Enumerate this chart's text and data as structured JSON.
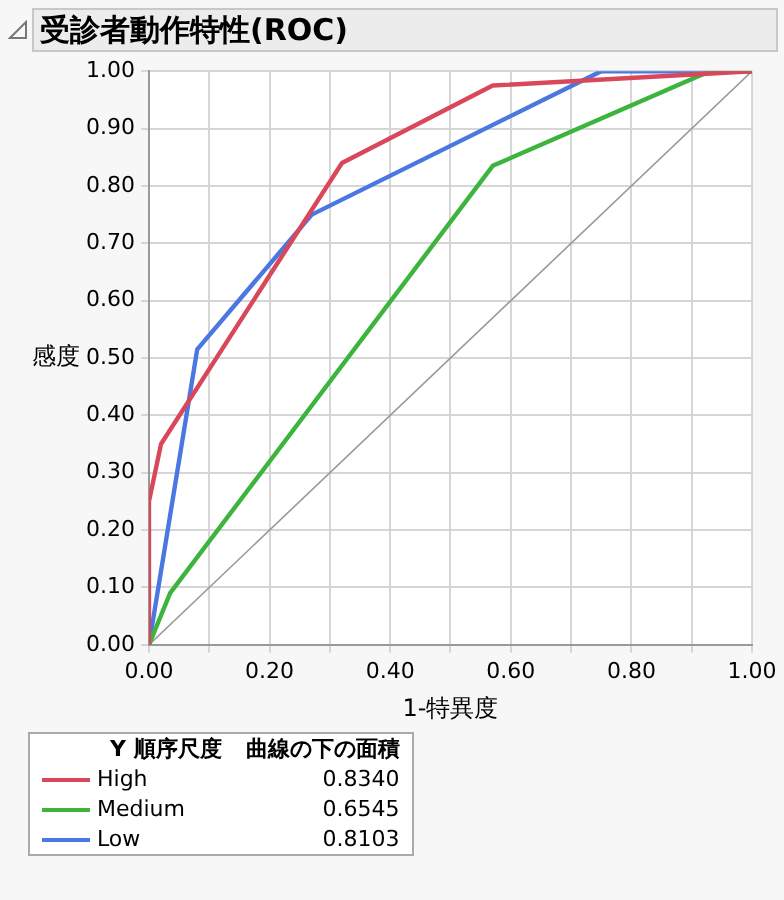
{
  "chart_data": {
    "type": "line",
    "title": "受診者動作特性(ROC)",
    "xlabel": "1-特異度",
    "ylabel": "感度",
    "legend": "bottom",
    "legend_title": "Y 順序尺度",
    "annotations": [
      "曲線の下の面積",
      "0.8340",
      "0.6545",
      "0.8103"
    ],
    "xlim": [
      0,
      1
    ],
    "ylim": [
      0,
      1
    ],
    "xticks": [
      {
        "value": 0,
        "label": "0.00"
      },
      {
        "value": 0.1,
        "label": null
      },
      {
        "value": 0.2,
        "label": "0.20"
      },
      {
        "value": 0.3,
        "label": null
      },
      {
        "value": 0.4,
        "label": "0.40"
      },
      {
        "value": 0.5,
        "label": null
      },
      {
        "value": 0.6,
        "label": "0.60"
      },
      {
        "value": 0.7,
        "label": null
      },
      {
        "value": 0.8,
        "label": "0.80"
      },
      {
        "value": 0.9,
        "label": null
      },
      {
        "value": 1,
        "label": "1.00"
      }
    ],
    "yticks": [
      {
        "value": 0,
        "label": "0.00"
      },
      {
        "value": 0.1,
        "label": "0.10"
      },
      {
        "value": 0.2,
        "label": "0.20"
      },
      {
        "value": 0.3,
        "label": "0.30"
      },
      {
        "value": 0.4,
        "label": "0.40"
      },
      {
        "value": 0.5,
        "label": "0.50"
      },
      {
        "value": 0.6,
        "label": "0.60"
      },
      {
        "value": 0.7,
        "label": "0.70"
      },
      {
        "value": 0.8,
        "label": "0.80"
      },
      {
        "value": 0.9,
        "label": "0.90"
      },
      {
        "value": 1,
        "label": "1.00"
      }
    ],
    "grid": true,
    "marker": "none",
    "line_style": "solid",
    "series": [
      {
        "name": "High",
        "color": "#d9475a",
        "x": [
          0,
          0,
          0.02,
          0.32,
          0.57,
          1
        ],
        "values": [
          0,
          0.25,
          0.35,
          0.84,
          0.975,
          1
        ]
      },
      {
        "name": "Medium",
        "color": "#3db43d",
        "x": [
          0,
          0.035,
          0.57,
          0.93,
          1
        ],
        "values": [
          0,
          0.09,
          0.835,
          1,
          1
        ]
      },
      {
        "name": "Low",
        "color": "#4a78e0",
        "x": [
          0,
          0.08,
          0.27,
          0.75,
          1
        ],
        "values": [
          0,
          0.515,
          0.75,
          1,
          1
        ]
      },
      {
        "color": "#999999",
        "x": [
          0,
          1
        ],
        "values": [
          0,
          1
        ]
      }
    ]
  }
}
